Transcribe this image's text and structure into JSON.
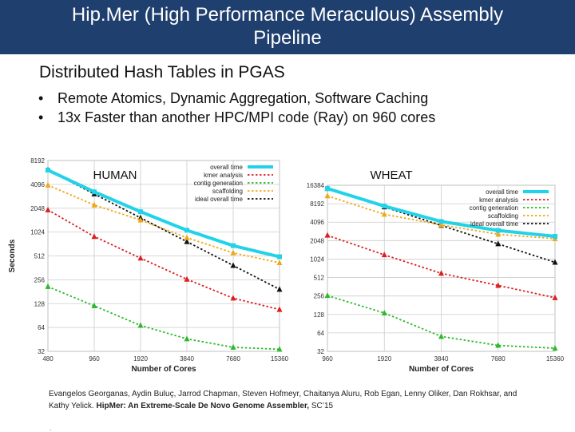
{
  "slide": {
    "title_line1": "Hip.Mer (High Performance Meraculous) Assembly",
    "title_line2": "Pipeline",
    "subtitle": "Distributed Hash Tables in PGAS",
    "bullets": [
      "Remote Atomics, Dynamic Aggregation, Software Caching",
      "13x Faster than another HPC/MPI code (Ray) on 960 cores"
    ],
    "citation_authors": "Evangelos Georganas, Aydin Buluç, Jarrod Chapman, Steven Hofmeyr, Chaitanya Aluru, Rob Egan, Lenny Oliker, Dan Rokhsar, and Kathy Yelick.",
    "citation_title": "HipMer: An Extreme-Scale De Novo Genome Assembler,",
    "citation_venue": "SC’15",
    "footer_dot": "."
  },
  "chart_data": [
    {
      "type": "line",
      "title": "HUMAN",
      "xlabel": "Number of Cores",
      "ylabel": "Seconds",
      "scale": "log2",
      "categories": [
        "480",
        "960",
        "1920",
        "3840",
        "7680",
        "15360"
      ],
      "ylim": [
        32,
        8192
      ],
      "yticks": [
        "32",
        "64",
        "128",
        "256",
        "512",
        "1024",
        "2048",
        "4096",
        "8192"
      ],
      "grid": true,
      "legend": "top-right",
      "series": [
        {
          "name": "overall time",
          "color": "#22d3e8",
          "style": "solid",
          "values": [
            6200,
            3300,
            1850,
            1080,
            690,
            500
          ]
        },
        {
          "name": "kmer analysis",
          "color": "#dd1f1f",
          "style": "dotted",
          "values": [
            1950,
            900,
            480,
            260,
            150,
            108
          ]
        },
        {
          "name": "contig generation",
          "color": "#2db82d",
          "style": "dotted",
          "values": [
            210,
            120,
            68,
            46,
            36,
            34
          ]
        },
        {
          "name": "scaffolding",
          "color": "#f0a818",
          "style": "dotted",
          "values": [
            4000,
            2250,
            1450,
            870,
            560,
            420
          ]
        },
        {
          "name": "ideal overall time",
          "color": "#111111",
          "style": "dotted",
          "values": [
            6200,
            3100,
            1550,
            775,
            388,
            194
          ]
        }
      ]
    },
    {
      "type": "line",
      "title": "WHEAT",
      "xlabel": "Number of Cores",
      "ylabel": "",
      "scale": "log2",
      "categories": [
        "960",
        "1920",
        "3840",
        "7680",
        "15360"
      ],
      "ylim": [
        32,
        16384
      ],
      "yticks": [
        "32",
        "64",
        "128",
        "256",
        "512",
        "1024",
        "2048",
        "4096",
        "8192",
        "16384"
      ],
      "grid": true,
      "legend": "top-right",
      "series": [
        {
          "name": "overall time",
          "color": "#22d3e8",
          "style": "solid",
          "values": [
            14500,
            7500,
            4200,
            3000,
            2400
          ]
        },
        {
          "name": "kmer analysis",
          "color": "#dd1f1f",
          "style": "dotted",
          "values": [
            2500,
            1200,
            600,
            380,
            240
          ]
        },
        {
          "name": "contig generation",
          "color": "#2db82d",
          "style": "dotted",
          "values": [
            260,
            135,
            56,
            40,
            36
          ]
        },
        {
          "name": "scaffolding",
          "color": "#f0a818",
          "style": "dotted",
          "values": [
            11000,
            5500,
            3700,
            2600,
            2200
          ]
        },
        {
          "name": "ideal overall time",
          "color": "#111111",
          "style": "dotted",
          "values": [
            14500,
            7250,
            3625,
            1813,
            906
          ]
        }
      ]
    }
  ]
}
